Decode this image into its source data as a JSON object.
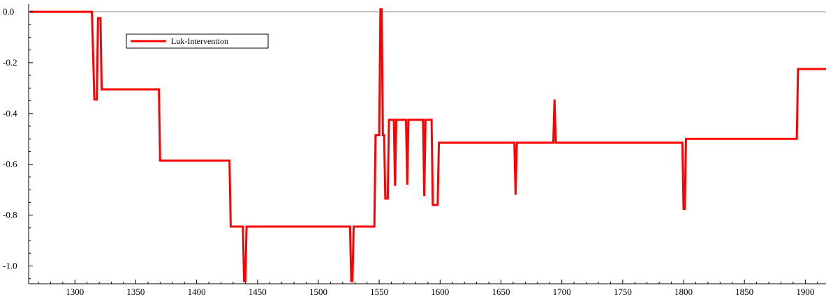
{
  "chart_data": {
    "type": "line",
    "title": "",
    "xlabel": "",
    "ylabel": "",
    "xlim": [
      1262,
      1917
    ],
    "ylim": [
      -1.07,
      0.03
    ],
    "xticks": [
      1300,
      1350,
      1400,
      1450,
      1500,
      1550,
      1600,
      1650,
      1700,
      1750,
      1800,
      1850,
      1900
    ],
    "yticks": [
      0.0,
      -0.2,
      -0.4,
      -0.6,
      -0.8,
      -1.0
    ],
    "ytick_labels": [
      "0.0",
      "-0.2",
      "-0.4",
      "-0.6",
      "-0.8",
      "-1.0"
    ],
    "grid": false,
    "zero_line": true,
    "legend": {
      "position": "top-left",
      "entries": [
        "Luk-Intervention"
      ]
    },
    "series": [
      {
        "name": "Luk-Intervention",
        "color": "#ff0000",
        "points": [
          [
            1263,
            0.0
          ],
          [
            1314,
            0.0
          ],
          [
            1316,
            -0.345
          ],
          [
            1318,
            -0.345
          ],
          [
            1319,
            -0.025
          ],
          [
            1321,
            -0.025
          ],
          [
            1322,
            -0.305
          ],
          [
            1369,
            -0.305
          ],
          [
            1370,
            -0.585
          ],
          [
            1427,
            -0.585
          ],
          [
            1428,
            -0.845
          ],
          [
            1438,
            -0.845
          ],
          [
            1439,
            -1.06
          ],
          [
            1440,
            -1.06
          ],
          [
            1441,
            -0.845
          ],
          [
            1526,
            -0.845
          ],
          [
            1527,
            -1.06
          ],
          [
            1528,
            -1.06
          ],
          [
            1529,
            -0.845
          ],
          [
            1546,
            -0.845
          ],
          [
            1547,
            -0.485
          ],
          [
            1550,
            -0.485
          ],
          [
            1551,
            0.01
          ],
          [
            1552,
            0.01
          ],
          [
            1553,
            -0.485
          ],
          [
            1554,
            -0.485
          ],
          [
            1555,
            -0.735
          ],
          [
            1557,
            -0.735
          ],
          [
            1558,
            -0.425
          ],
          [
            1562,
            -0.425
          ],
          [
            1563,
            -0.685
          ],
          [
            1564,
            -0.425
          ],
          [
            1572,
            -0.425
          ],
          [
            1573,
            -0.68
          ],
          [
            1574,
            -0.425
          ],
          [
            1586,
            -0.425
          ],
          [
            1587,
            -0.725
          ],
          [
            1588,
            -0.425
          ],
          [
            1593,
            -0.425
          ],
          [
            1594,
            -0.76
          ],
          [
            1598,
            -0.76
          ],
          [
            1599,
            -0.515
          ],
          [
            1661,
            -0.515
          ],
          [
            1662,
            -0.72
          ],
          [
            1663,
            -0.515
          ],
          [
            1693,
            -0.515
          ],
          [
            1694,
            -0.345
          ],
          [
            1695,
            -0.515
          ],
          [
            1799,
            -0.515
          ],
          [
            1800,
            -0.775
          ],
          [
            1801,
            -0.775
          ],
          [
            1802,
            -0.5
          ],
          [
            1893,
            -0.5
          ],
          [
            1894,
            -0.225
          ],
          [
            1917,
            -0.225
          ]
        ]
      }
    ]
  }
}
